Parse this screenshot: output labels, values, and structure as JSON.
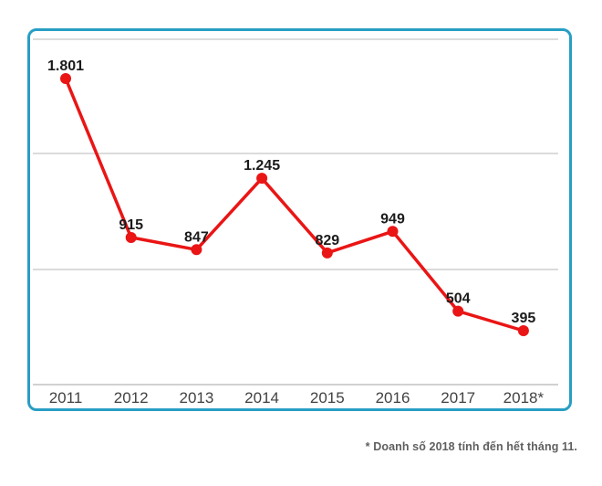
{
  "page": {
    "background": "#ffffff"
  },
  "chart_data": {
    "type": "line",
    "categories": [
      "2011",
      "2012",
      "2013",
      "2014",
      "2015",
      "2016",
      "2017",
      "2018*"
    ],
    "values": [
      1801,
      915,
      847,
      1245,
      829,
      949,
      504,
      395
    ],
    "point_labels": [
      "1.801",
      "915",
      "847",
      "1.245",
      "829",
      "949",
      "504",
      "395"
    ],
    "title": "",
    "xlabel": "",
    "ylabel": "",
    "ylim": [
      100,
      2050
    ],
    "y_axis_labels_visible": false,
    "grid": "horizontal",
    "legend_position": "none",
    "series_color": "#ea1515",
    "grid_color": "#cfcfcf",
    "axis_color": "#c2c2c2",
    "border_color": "#289ec4",
    "label_color": "#1b1b1b",
    "tick_color": "#424242"
  },
  "footnote": {
    "text": "* Doanh số 2018 tính đến hết tháng 11."
  }
}
